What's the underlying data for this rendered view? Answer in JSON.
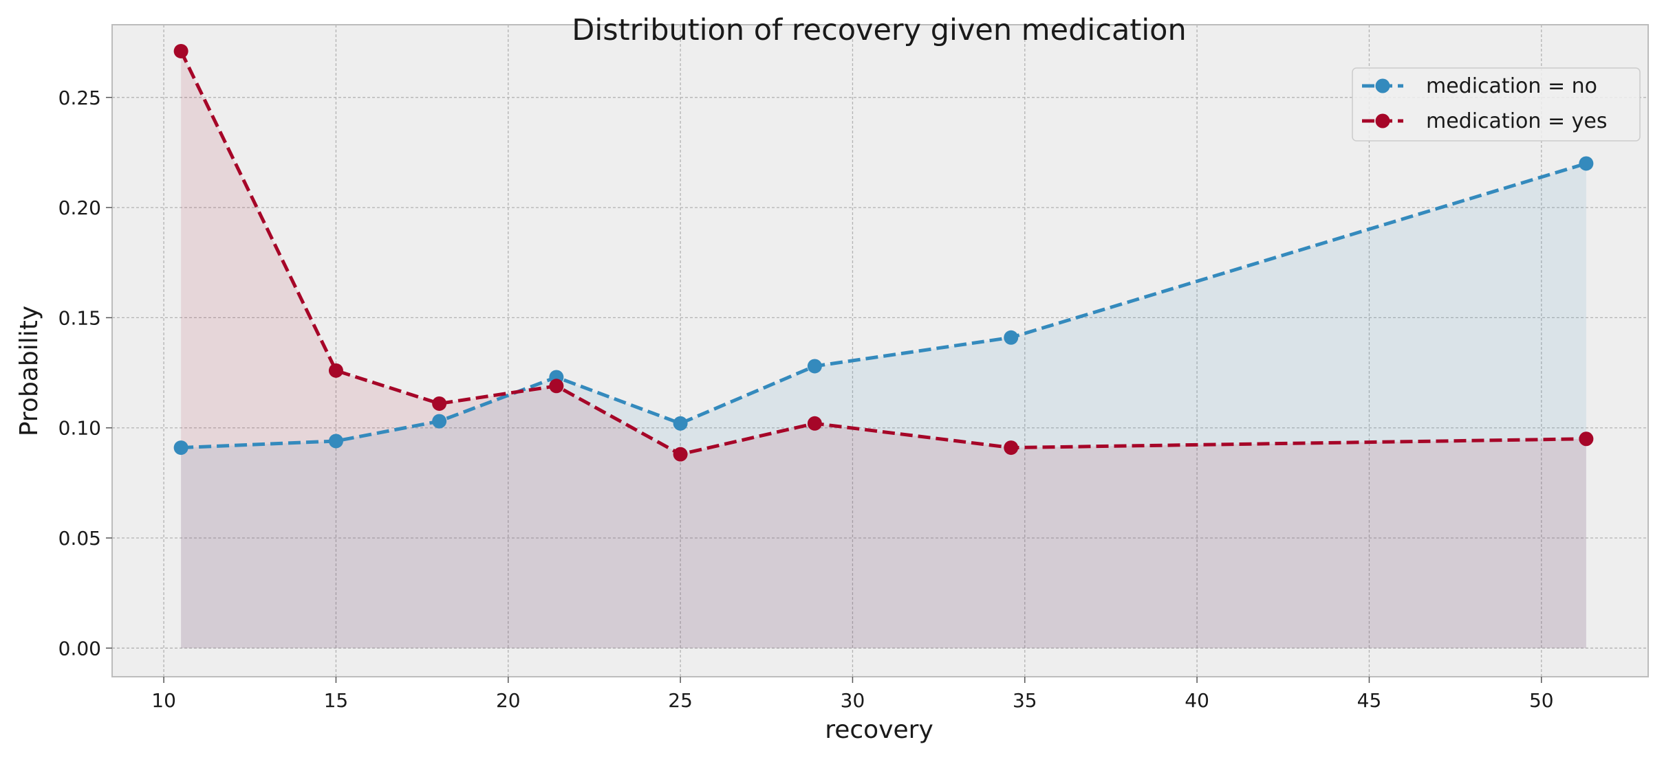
{
  "chart_data": {
    "type": "line",
    "title": "Distribution of recovery given medication",
    "xlabel": "recovery",
    "ylabel": "Probability",
    "xlim": [
      8.5,
      53.1
    ],
    "ylim": [
      -0.013,
      0.283
    ],
    "x_ticks": [
      10,
      15,
      20,
      25,
      30,
      35,
      40,
      45,
      50
    ],
    "y_ticks": [
      0.0,
      0.05,
      0.1,
      0.15,
      0.2,
      0.25
    ],
    "x_tick_labels": [
      "10",
      "15",
      "20",
      "25",
      "30",
      "35",
      "40",
      "45",
      "50"
    ],
    "y_tick_labels": [
      "0.00",
      "0.05",
      "0.10",
      "0.15",
      "0.20",
      "0.25"
    ],
    "grid": true,
    "legend_position": "top-right",
    "line_style": "dashed",
    "marker": "circle",
    "area_fill": true,
    "series": [
      {
        "name": "medication = no",
        "color": "#348abd",
        "x": [
          10.5,
          15.0,
          18.0,
          21.4,
          25.0,
          28.9,
          34.6,
          51.3
        ],
        "y": [
          0.091,
          0.094,
          0.103,
          0.123,
          0.102,
          0.128,
          0.141,
          0.22
        ]
      },
      {
        "name": "medication = yes",
        "color": "#a60628",
        "x": [
          10.5,
          15.0,
          18.0,
          21.4,
          25.0,
          28.9,
          34.6,
          51.3
        ],
        "y": [
          0.271,
          0.126,
          0.111,
          0.119,
          0.088,
          0.102,
          0.091,
          0.095
        ]
      }
    ],
    "colors": {
      "plot_background": "#eeeeee",
      "grid": "#b2b2b2",
      "axes_edge": "#bcbcbc"
    }
  }
}
